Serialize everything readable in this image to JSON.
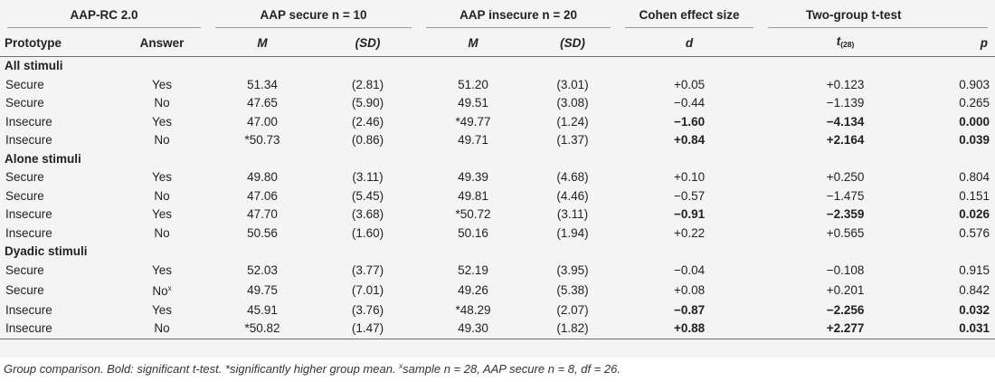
{
  "table": {
    "group_headers": {
      "aap": "AAP-RC 2.0",
      "secure": "AAP secure n = 10",
      "insecure": "AAP insecure n = 20",
      "cohen": "Cohen effect size",
      "ttest": "Two-group t-test"
    },
    "columns": {
      "prototype": "Prototype",
      "answer": "Answer",
      "m1": "M",
      "sd1": "(SD)",
      "m2": "M",
      "sd2": "(SD)",
      "d": "d",
      "t": "t",
      "t_sub": "(28)",
      "p": "p"
    },
    "sections": [
      {
        "title": "All stimuli",
        "rows": [
          {
            "proto": "Secure",
            "ans": "Yes",
            "m1": "51.34",
            "sd1": "(2.81)",
            "m2": "51.20",
            "sd2": "(3.01)",
            "d": "+0.05",
            "t": "+0.123",
            "p": "0.903",
            "bold": false
          },
          {
            "proto": "Secure",
            "ans": "No",
            "m1": "47.65",
            "sd1": "(5.90)",
            "m2": "49.51",
            "sd2": "(3.08)",
            "d": "−0.44",
            "t": "−1.139",
            "p": "0.265",
            "bold": false
          },
          {
            "proto": "Insecure",
            "ans": "Yes",
            "m1": "47.00",
            "sd1": "(2.46)",
            "m2": "*49.77",
            "sd2": "(1.24)",
            "d": "−1.60",
            "t": "−4.134",
            "p": "0.000",
            "bold": true
          },
          {
            "proto": "Insecure",
            "ans": "No",
            "m1": "*50.73",
            "sd1": "(0.86)",
            "m2": "49.71",
            "sd2": "(1.37)",
            "d": "+0.84",
            "t": "+2.164",
            "p": "0.039",
            "bold": true
          }
        ]
      },
      {
        "title": "Alone stimuli",
        "rows": [
          {
            "proto": "Secure",
            "ans": "Yes",
            "m1": "49.80",
            "sd1": "(3.11)",
            "m2": "49.39",
            "sd2": "(4.68)",
            "d": "+0.10",
            "t": "+0.250",
            "p": "0.804",
            "bold": false
          },
          {
            "proto": "Secure",
            "ans": "No",
            "m1": "47.06",
            "sd1": "(5.45)",
            "m2": "49.81",
            "sd2": "(4.46)",
            "d": "−0.57",
            "t": "−1.475",
            "p": "0.151",
            "bold": false
          },
          {
            "proto": "Insecure",
            "ans": "Yes",
            "m1": "47.70",
            "sd1": "(3.68)",
            "m2": "*50.72",
            "sd2": "(3.11)",
            "d": "−0.91",
            "t": "−2.359",
            "p": "0.026",
            "bold": true
          },
          {
            "proto": "Insecure",
            "ans": "No",
            "m1": "50.56",
            "sd1": "(1.60)",
            "m2": "50.16",
            "sd2": "(1.94)",
            "d": "+0.22",
            "t": "+0.565",
            "p": "0.576",
            "bold": false
          }
        ]
      },
      {
        "title": "Dyadic stimuli",
        "rows": [
          {
            "proto": "Secure",
            "ans": "Yes",
            "m1": "52.03",
            "sd1": "(3.77)",
            "m2": "52.19",
            "sd2": "(3.95)",
            "d": "−0.04",
            "t": "−0.108",
            "p": "0.915",
            "bold": false
          },
          {
            "proto": "Secure",
            "ans": "No",
            "ans_sup": "x",
            "m1": "49.75",
            "sd1": "(7.01)",
            "m2": "49.26",
            "sd2": "(5.38)",
            "d": "+0.08",
            "t": "+0.201",
            "p": "0.842",
            "bold": false
          },
          {
            "proto": "Insecure",
            "ans": "Yes",
            "m1": "45.91",
            "sd1": "(3.76)",
            "m2": "*48.29",
            "sd2": "(2.07)",
            "d": "−0.87",
            "t": "−2.256",
            "p": "0.032",
            "bold": true
          },
          {
            "proto": "Insecure",
            "ans": "No",
            "m1": "*50.82",
            "sd1": "(1.47)",
            "m2": "49.30",
            "sd2": "(1.82)",
            "d": "+0.88",
            "t": "+2.277",
            "p": "0.031",
            "bold": true
          }
        ]
      }
    ]
  },
  "footnote": {
    "part1": "Group comparison. Bold: significant t-test. *significantly higher group mean. ",
    "sup": "x",
    "part2": "sample n = 28, AAP secure n = 8, df = 26."
  }
}
